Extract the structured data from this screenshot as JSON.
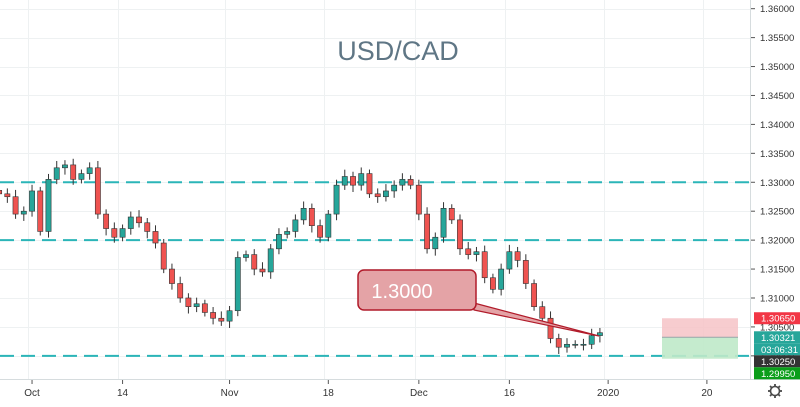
{
  "chart_data": {
    "type": "candlestick",
    "title": "USD/CAD",
    "annotation": {
      "label": "1.3000",
      "price": 1.3
    },
    "x_tick_labels": [
      {
        "label": "Oct",
        "index": 4
      },
      {
        "label": "14",
        "index": 15
      },
      {
        "label": "Nov",
        "index": 28
      },
      {
        "label": "18",
        "index": 40
      },
      {
        "label": "Dec",
        "index": 51
      },
      {
        "label": "16",
        "index": 62
      },
      {
        "label": "2020",
        "index": 74
      },
      {
        "label": "20",
        "index": 86
      }
    ],
    "y_axis": {
      "ylim": [
        1.296,
        1.3615
      ],
      "ticks": [
        "1.36000",
        "1.35500",
        "1.35000",
        "1.34500",
        "1.34000",
        "1.33500",
        "1.33000",
        "1.32500",
        "1.32000",
        "1.31500",
        "1.31000",
        "1.30500",
        "1.30000"
      ]
    },
    "horizontal_levels": [
      1.33,
      1.32,
      1.3
    ],
    "position": {
      "stop_loss": 1.3065,
      "entry": 1.30321,
      "take_profit": 1.2995
    },
    "price_labels": [
      {
        "text": "1.30650",
        "price": 1.3065,
        "color": "#f23645"
      },
      {
        "text": "1.30321",
        "price": 1.30321,
        "color": "#26a69a"
      },
      {
        "text": "03:06:31",
        "price": 1.30221,
        "color": "#26a69a"
      },
      {
        "text": "1.30250",
        "price": 1.3025,
        "color": "#333333"
      },
      {
        "text": "1.29950",
        "price": 1.2995,
        "color": "#0b9e1a"
      }
    ],
    "grid": true,
    "closes": [
      1.328,
      1.3275,
      1.3245,
      1.325,
      1.3285,
      1.3215,
      1.3305,
      1.3325,
      1.333,
      1.3305,
      1.3315,
      1.3325,
      1.3245,
      1.322,
      1.3205,
      1.322,
      1.324,
      1.323,
      1.3215,
      1.3195,
      1.315,
      1.3125,
      1.31,
      1.3085,
      1.309,
      1.3075,
      1.3065,
      1.306,
      1.3078,
      1.317,
      1.3175,
      1.315,
      1.3145,
      1.3185,
      1.321,
      1.3215,
      1.3235,
      1.3255,
      1.3225,
      1.3205,
      1.3245,
      1.3295,
      1.331,
      1.3295,
      1.3315,
      1.328,
      1.3275,
      1.3285,
      1.3295,
      1.3305,
      1.3295,
      1.3245,
      1.3185,
      1.3205,
      1.3255,
      1.3235,
      1.3185,
      1.3175,
      1.318,
      1.3135,
      1.3115,
      1.315,
      1.318,
      1.3165,
      1.3125,
      1.3085,
      1.3065,
      1.303,
      1.3015,
      1.302,
      1.302,
      1.302,
      1.3035,
      1.304
    ],
    "colors": {
      "up": "#26a69a",
      "down": "#ef5350",
      "level": "#2bb5b8",
      "text": "#5f7685"
    }
  }
}
